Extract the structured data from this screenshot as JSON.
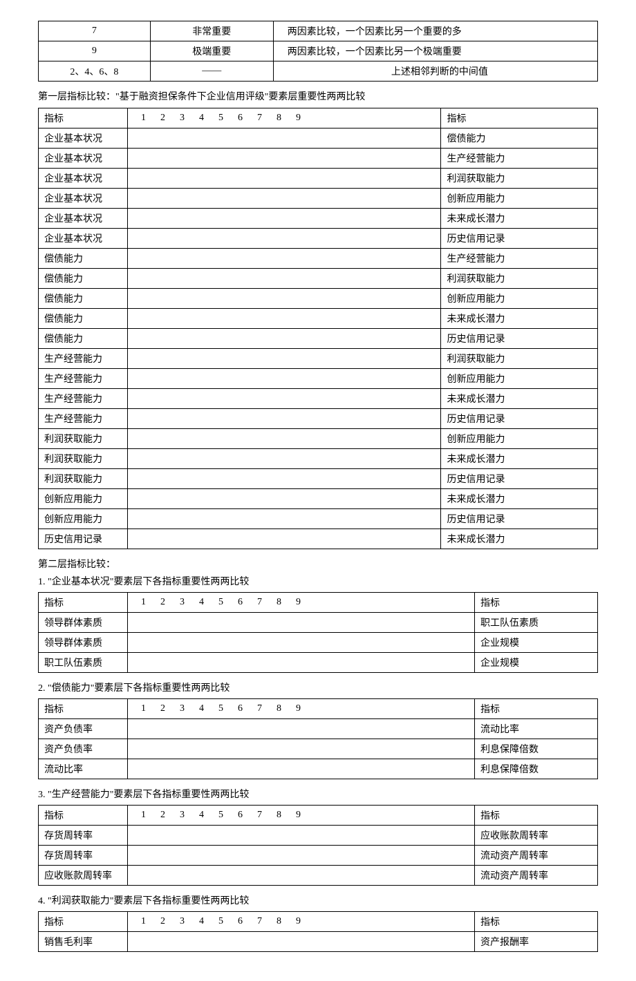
{
  "scale_table": {
    "rows": [
      {
        "val": "7",
        "label": "非常重要",
        "desc": "两因素比较，一个因素比另一个重要的多"
      },
      {
        "val": "9",
        "label": "极端重要",
        "desc": "两因素比较，一个因素比另一个极端重要"
      },
      {
        "val": "2、4、6、8",
        "label": "——",
        "desc": "上述相邻判断的中间值"
      }
    ]
  },
  "level1": {
    "title": "第一层指标比较：\"基于融资担保条件下企业信用评级\"要素层重要性两两比较",
    "header_left": "指标",
    "header_right": "指标",
    "scale_numbers": "1      2      3      4      5      6      7      8      9",
    "rows": [
      {
        "left": "企业基本状况",
        "right": "偿债能力"
      },
      {
        "left": "企业基本状况",
        "right": "生产经营能力"
      },
      {
        "left": "企业基本状况",
        "right": "利润获取能力"
      },
      {
        "left": "企业基本状况",
        "right": "创新应用能力"
      },
      {
        "left": "企业基本状况",
        "right": "未来成长潜力"
      },
      {
        "left": "企业基本状况",
        "right": "历史信用记录"
      },
      {
        "left": "偿债能力",
        "right": "生产经营能力"
      },
      {
        "left": "偿债能力",
        "right": "利润获取能力"
      },
      {
        "left": "偿债能力",
        "right": "创新应用能力"
      },
      {
        "left": "偿债能力",
        "right": "未来成长潜力"
      },
      {
        "left": "偿债能力",
        "right": "历史信用记录"
      },
      {
        "left": "生产经营能力",
        "right": "利润获取能力"
      },
      {
        "left": "生产经营能力",
        "right": "创新应用能力"
      },
      {
        "left": "生产经营能力",
        "right": "未来成长潜力"
      },
      {
        "left": "生产经营能力",
        "right": "历史信用记录"
      },
      {
        "left": "利润获取能力",
        "right": "创新应用能力"
      },
      {
        "left": "利润获取能力",
        "right": "未来成长潜力"
      },
      {
        "left": "利润获取能力",
        "right": "历史信用记录"
      },
      {
        "left": "创新应用能力",
        "right": "未来成长潜力"
      },
      {
        "left": "创新应用能力",
        "right": "历史信用记录"
      },
      {
        "left": "历史信用记录",
        "right": "未来成长潜力"
      }
    ]
  },
  "level2_intro": "第二层指标比较：",
  "sections": [
    {
      "title": "1. \"企业基本状况\"要素层下各指标重要性两两比较",
      "rows": [
        {
          "left": "领导群体素质",
          "right": "职工队伍素质"
        },
        {
          "left": "领导群体素质",
          "right": "企业规模"
        },
        {
          "left": "职工队伍素质",
          "right": "企业规模"
        }
      ]
    },
    {
      "title": "2. \"偿债能力\"要素层下各指标重要性两两比较",
      "rows": [
        {
          "left": "资产负债率",
          "right": "流动比率"
        },
        {
          "left": "资产负债率",
          "right": "利息保障倍数"
        },
        {
          "left": "流动比率",
          "right": "利息保障倍数"
        }
      ]
    },
    {
      "title": "3. \"生产经营能力\"要素层下各指标重要性两两比较",
      "rows": [
        {
          "left": "存货周转率",
          "right": "应收账款周转率"
        },
        {
          "left": "存货周转率",
          "right": "流动资产周转率"
        },
        {
          "left": "应收账款周转率",
          "right": "流动资产周转率"
        }
      ]
    },
    {
      "title": "4. \"利润获取能力\"要素层下各指标重要性两两比较",
      "rows": [
        {
          "left": "销售毛利率",
          "right": "资产报酬率"
        }
      ]
    }
  ],
  "common": {
    "header_left": "指标",
    "header_right": "指标",
    "scale_numbers": [
      "1",
      "2",
      "3",
      "4",
      "5",
      "6",
      "7",
      "8",
      "9"
    ]
  }
}
